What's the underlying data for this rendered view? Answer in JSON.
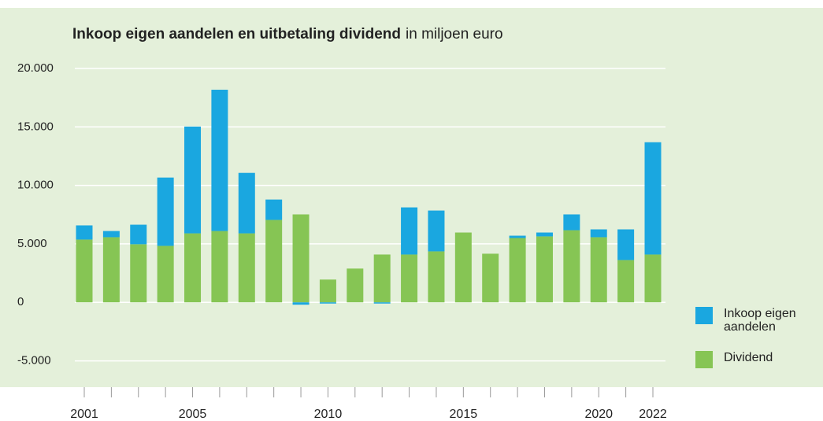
{
  "chart_data": {
    "type": "stacked_bar",
    "title": "Inkoop eigen aandelen en uitbetaling dividend",
    "subtitle": "in miljoen euro",
    "categories": [
      "2001",
      null,
      null,
      null,
      "2005",
      null,
      null,
      null,
      null,
      "2010",
      null,
      null,
      null,
      null,
      "2015",
      null,
      null,
      null,
      null,
      "2020",
      null,
      "2022"
    ],
    "series": [
      {
        "name": "Dividend",
        "color": "#86c554",
        "values": [
          5370,
          5570,
          4970,
          4830,
          5900,
          6100,
          5900,
          7050,
          7520,
          1950,
          2890,
          4090,
          4090,
          4360,
          5970,
          4160,
          5500,
          5640,
          6170,
          5570,
          3620,
          4090
        ]
      },
      {
        "name": "Inkoop eigen aandelen",
        "color": "#1aa7e0",
        "values": [
          1210,
          530,
          1670,
          5840,
          9130,
          12080,
          5170,
          1740,
          -200,
          -100,
          0,
          -100,
          4030,
          3490,
          0,
          0,
          200,
          330,
          1350,
          670,
          2620,
          9600
        ]
      }
    ],
    "ylim": [
      -7000,
      21000
    ],
    "yticks": [
      {
        "value": -5000,
        "label": "-5.000"
      },
      0,
      {
        "value": 5000,
        "label": "5.000"
      },
      {
        "value": 10000,
        "label": "10.000"
      },
      {
        "value": 15000,
        "label": "15.000"
      },
      {
        "value": 20000,
        "label": "20.000"
      }
    ],
    "grid": true,
    "legend": "right"
  }
}
